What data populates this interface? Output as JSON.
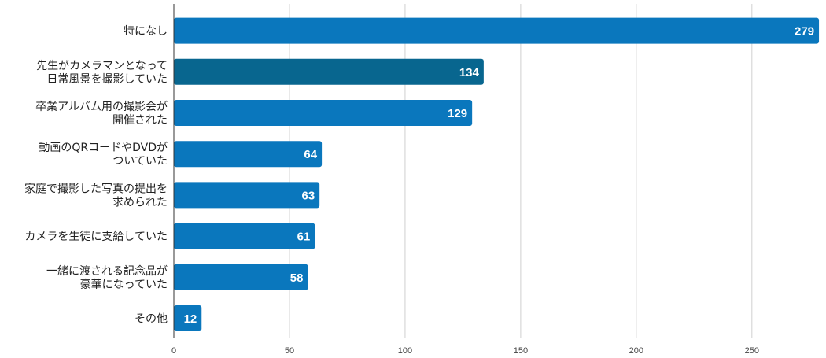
{
  "chart_data": {
    "type": "bar",
    "orientation": "horizontal",
    "categories": [
      [
        "特になし"
      ],
      [
        "先生がカメラマンとなって",
        "日常風景を撮影していた"
      ],
      [
        "卒業アルバム用の撮影会が",
        "開催された"
      ],
      [
        "動画のQRコードやDVDが",
        "ついていた"
      ],
      [
        "家庭で撮影した写真の提出を",
        "求められた"
      ],
      [
        "カメラを生徒に支給していた"
      ],
      [
        "一緒に渡される記念品が",
        "豪華になっていた"
      ],
      [
        "その他"
      ]
    ],
    "values": [
      279,
      134,
      129,
      64,
      63,
      61,
      58,
      12
    ],
    "xlim": [
      0,
      280
    ],
    "xticks": [
      0,
      50,
      100,
      150,
      200,
      250
    ],
    "grid": true,
    "bar_color": "#0a77bd",
    "highlight_color": "#08668f",
    "highlight_index": 1,
    "title": "",
    "xlabel": "",
    "ylabel": ""
  }
}
